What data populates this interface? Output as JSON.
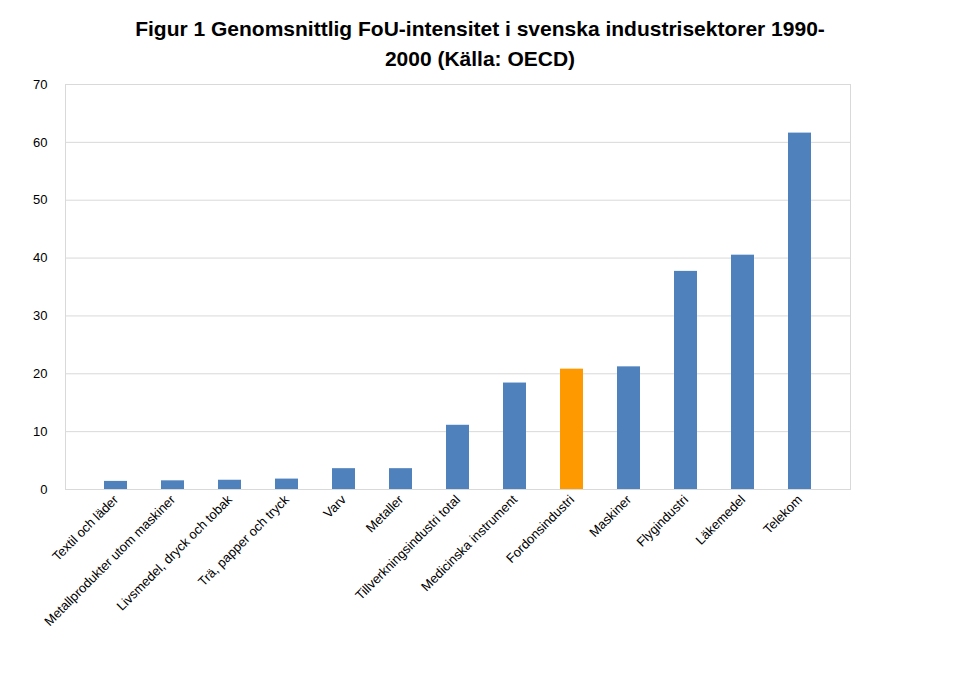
{
  "chart_data": {
    "type": "bar",
    "title": "Figur 1 Genomsnittlig FoU-intensitet i svenska industrisektorer 1990-2000 (Källa: OECD)",
    "categories": [
      "Textil och läder",
      "Metallprodukter utom maskiner",
      "Livsmedel, dryck och tobak",
      "Trä, papper och tryck",
      "Varv",
      "Metaller",
      "Tillverkningsindustri total",
      "Medicinska instrument",
      "Fordonsindustri",
      "Maskiner",
      "Flygindustri",
      "Läkemedel",
      "Telekom"
    ],
    "values": [
      1.4,
      1.5,
      1.6,
      1.8,
      3.6,
      3.6,
      11.1,
      18.4,
      20.8,
      21.2,
      37.7,
      40.5,
      61.6
    ],
    "colors": [
      "#4f81bd",
      "#4f81bd",
      "#4f81bd",
      "#4f81bd",
      "#4f81bd",
      "#4f81bd",
      "#4f81bd",
      "#4f81bd",
      "#ff9900",
      "#4f81bd",
      "#4f81bd",
      "#4f81bd",
      "#4f81bd"
    ],
    "ylim": [
      0,
      70
    ],
    "yticks": [
      0,
      10,
      20,
      30,
      40,
      50,
      60,
      70
    ],
    "grid": true
  }
}
